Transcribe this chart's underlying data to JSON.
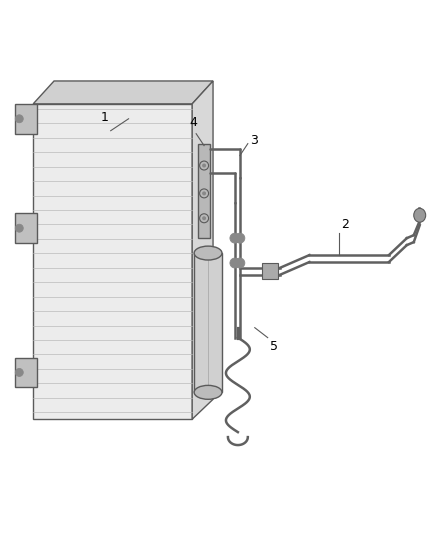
{
  "bg_color": "#ffffff",
  "line_color": "#5a5a5a",
  "light_gray": "#e8e8e8",
  "mid_gray": "#c8c8c8",
  "dark_gray": "#a0a0a0",
  "label_color": "#000000",
  "fig_width": 4.38,
  "fig_height": 5.33,
  "dpi": 100,
  "label_fontsize": 9
}
